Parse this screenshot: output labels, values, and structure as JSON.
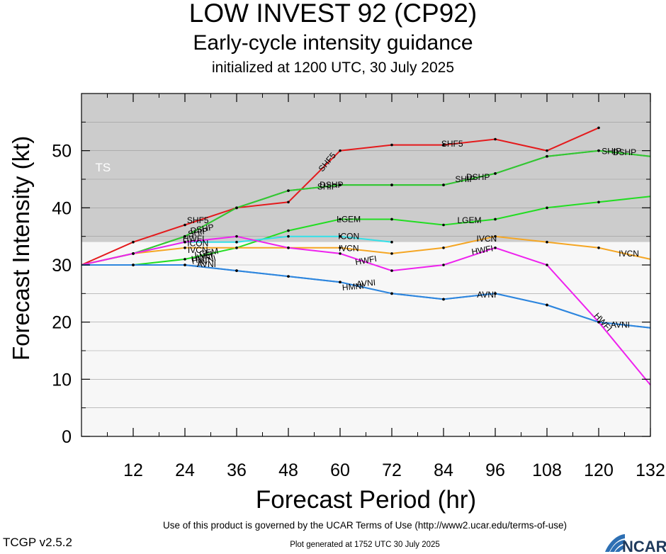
{
  "title": "LOW INVEST 92 (CP92)",
  "subtitle": "Early-cycle intensity guidance",
  "initialized": "initialized at 1200 UTC, 30 July 2025",
  "terms": "Use of this product is governed by the UCAR Terms of Use (http://www2.ucar.edu/terms-of-use)",
  "version": "TCGP v2.5.2",
  "generated": "Plot generated at 1752 UTC   30 July 2025",
  "logo_text": "NCAR",
  "chart_data": {
    "type": "line",
    "xlabel": "Forecast Period (hr)",
    "ylabel": "Forecast Intensity (kt)",
    "xlim": [
      0,
      132
    ],
    "ylim": [
      0,
      60
    ],
    "xticks": [
      12,
      24,
      36,
      48,
      60,
      72,
      84,
      96,
      108,
      120,
      132
    ],
    "yticks": [
      0,
      10,
      20,
      30,
      40,
      50
    ],
    "bands": [
      {
        "label": "TS",
        "from": 34,
        "to": 60,
        "color": "#cccccc"
      },
      {
        "label": "",
        "from": 0,
        "to": 34,
        "color": "#f7f7f7"
      }
    ],
    "series": [
      {
        "name": "SHF5",
        "color": "#e41a1c",
        "points": [
          [
            0,
            30
          ],
          [
            12,
            34
          ],
          [
            24,
            37
          ],
          [
            36,
            40
          ],
          [
            48,
            41
          ],
          [
            60,
            50
          ],
          [
            72,
            51
          ],
          [
            84,
            51
          ],
          [
            96,
            52
          ],
          [
            108,
            50
          ],
          [
            120,
            54
          ]
        ],
        "labels": [
          {
            "x": 27,
            "y": 37.8,
            "angle": 0
          },
          {
            "x": 57,
            "y": 48,
            "angle": -50
          },
          {
            "x": 86,
            "y": 51.2,
            "angle": 0
          }
        ]
      },
      {
        "name": "DSHP",
        "color": "#33c633",
        "points": [
          [
            0,
            30
          ],
          [
            12,
            32
          ],
          [
            24,
            35
          ],
          [
            36,
            40
          ],
          [
            48,
            43
          ],
          [
            60,
            44
          ],
          [
            72,
            44
          ],
          [
            84,
            44
          ],
          [
            96,
            46
          ],
          [
            108,
            49
          ],
          [
            120,
            50
          ],
          [
            132,
            49
          ]
        ],
        "labels": [
          {
            "x": 28,
            "y": 36.3,
            "angle": -10
          },
          {
            "x": 58,
            "y": 44,
            "angle": 0
          },
          {
            "x": 92,
            "y": 45.4,
            "angle": 0
          },
          {
            "x": 126,
            "y": 49.7,
            "angle": 0
          }
        ]
      },
      {
        "name": "SHIP",
        "color": "#33c633",
        "points": [
          [
            0,
            30
          ],
          [
            12,
            32
          ],
          [
            24,
            35
          ],
          [
            36,
            40
          ],
          [
            48,
            43
          ],
          [
            60,
            44
          ],
          [
            72,
            44
          ],
          [
            84,
            44
          ],
          [
            96,
            46
          ],
          [
            108,
            49
          ],
          [
            120,
            50
          ],
          [
            132,
            49
          ]
        ],
        "labels": [
          {
            "x": 27,
            "y": 35.7,
            "angle": -10
          },
          {
            "x": 57,
            "y": 43.7,
            "angle": 0
          },
          {
            "x": 89,
            "y": 45.0,
            "angle": 0
          },
          {
            "x": 123,
            "y": 49.9,
            "angle": 0
          }
        ]
      },
      {
        "name": "LGEM",
        "color": "#22dd22",
        "points": [
          [
            0,
            30
          ],
          [
            12,
            30
          ],
          [
            24,
            31
          ],
          [
            36,
            33
          ],
          [
            48,
            36
          ],
          [
            60,
            38
          ],
          [
            72,
            38
          ],
          [
            84,
            37
          ],
          [
            96,
            38
          ],
          [
            108,
            40
          ],
          [
            120,
            41
          ],
          [
            132,
            42
          ]
        ],
        "labels": [
          {
            "x": 29,
            "y": 32.1,
            "angle": -10
          },
          {
            "x": 62,
            "y": 38,
            "angle": 0
          },
          {
            "x": 90,
            "y": 37.8,
            "angle": 0
          }
        ]
      },
      {
        "name": "ICON",
        "color": "#33e0e8",
        "points": [
          [
            0,
            30
          ],
          [
            12,
            32
          ],
          [
            24,
            34
          ],
          [
            36,
            34
          ],
          [
            48,
            35
          ],
          [
            60,
            35
          ],
          [
            72,
            34
          ]
        ],
        "labels": [
          {
            "x": 27,
            "y": 33.8,
            "angle": 0
          },
          {
            "x": 62,
            "y": 35,
            "angle": 0
          }
        ]
      },
      {
        "name": "IVCN",
        "color": "#f5a623",
        "points": [
          [
            0,
            30
          ],
          [
            12,
            32
          ],
          [
            24,
            33
          ],
          [
            36,
            33
          ],
          [
            48,
            33
          ],
          [
            60,
            33
          ],
          [
            72,
            32
          ],
          [
            84,
            33
          ],
          [
            96,
            35
          ],
          [
            108,
            34
          ],
          [
            120,
            33
          ],
          [
            132,
            31
          ]
        ],
        "labels": [
          {
            "x": 27,
            "y": 32.6,
            "angle": 0
          },
          {
            "x": 62,
            "y": 32.9,
            "angle": 0
          },
          {
            "x": 94,
            "y": 34.6,
            "angle": 0
          },
          {
            "x": 127,
            "y": 32.0,
            "angle": 0
          }
        ]
      },
      {
        "name": "HWFI",
        "color": "#ee22ee",
        "points": [
          [
            0,
            30
          ],
          [
            12,
            32
          ],
          [
            24,
            34
          ],
          [
            36,
            35
          ],
          [
            48,
            33
          ],
          [
            60,
            32
          ],
          [
            72,
            29
          ],
          [
            84,
            30
          ],
          [
            96,
            33
          ],
          [
            108,
            30
          ],
          [
            120,
            20
          ],
          [
            132,
            9
          ]
        ],
        "labels": [
          {
            "x": 26,
            "y": 34.6,
            "angle": 0
          },
          {
            "x": 28,
            "y": 31.5,
            "angle": -15
          },
          {
            "x": 66,
            "y": 30.8,
            "angle": -10
          },
          {
            "x": 93,
            "y": 32.6,
            "angle": -10
          },
          {
            "x": 121,
            "y": 20,
            "angle": 48
          }
        ]
      },
      {
        "name": "HMNI",
        "color": "#2e86de",
        "points": [
          [
            0,
            30
          ],
          [
            12,
            30
          ],
          [
            24,
            30
          ],
          [
            36,
            29
          ],
          [
            48,
            28
          ],
          [
            60,
            27
          ],
          [
            72,
            25
          ],
          [
            84,
            24
          ],
          [
            96,
            25
          ],
          [
            108,
            23
          ],
          [
            120,
            20
          ],
          [
            132,
            19
          ]
        ],
        "labels": [
          {
            "x": 28,
            "y": 31.1,
            "angle": -15
          },
          {
            "x": 63,
            "y": 26.2,
            "angle": -5
          }
        ]
      },
      {
        "name": "AVNI",
        "color": "#2e86de",
        "points": [
          [
            0,
            30
          ],
          [
            12,
            30
          ],
          [
            24,
            30
          ],
          [
            36,
            29
          ],
          [
            48,
            28
          ],
          [
            60,
            27
          ],
          [
            72,
            25
          ],
          [
            84,
            24
          ],
          [
            96,
            25
          ],
          [
            108,
            23
          ],
          [
            120,
            20
          ],
          [
            132,
            19
          ]
        ],
        "labels": [
          {
            "x": 29,
            "y": 30.1,
            "angle": 0
          },
          {
            "x": 29,
            "y": 30.8,
            "angle": -15
          },
          {
            "x": 66,
            "y": 26.8,
            "angle": -5
          },
          {
            "x": 94,
            "y": 24.8,
            "angle": 0
          },
          {
            "x": 125,
            "y": 19.5,
            "angle": 0
          }
        ]
      }
    ]
  }
}
